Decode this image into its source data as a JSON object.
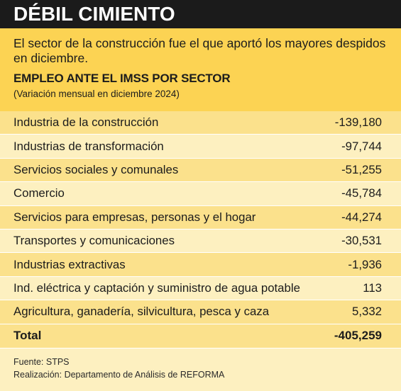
{
  "header": {
    "title": "DÉBIL CIMIENTO",
    "subtitle": "El sector de la construcción fue el que aportó los mayores despidos en diciembre."
  },
  "chart_data": {
    "type": "table",
    "title": "EMPLEO ANTE EL IMSS POR SECTOR",
    "note": "(Variación mensual en diciembre 2024)",
    "rows": [
      {
        "label": "Industria de la construcción",
        "value_text": "-139,180",
        "value": -139180
      },
      {
        "label": "Industrias de transformación",
        "value_text": "-97,744",
        "value": -97744
      },
      {
        "label": "Servicios sociales y comunales",
        "value_text": "-51,255",
        "value": -51255
      },
      {
        "label": "Comercio",
        "value_text": "-45,784",
        "value": -45784
      },
      {
        "label": "Servicios para empresas, personas y el hogar",
        "value_text": "-44,274",
        "value": -44274
      },
      {
        "label": "Transportes y comunicaciones",
        "value_text": "-30,531",
        "value": -30531
      },
      {
        "label": "Industrias extractivas",
        "value_text": "-1,936",
        "value": -1936
      },
      {
        "label": "Ind. eléctrica y captación y suministro de agua potable",
        "value_text": "113",
        "value": 113
      },
      {
        "label": "Agricultura, ganadería, silvicultura, pesca y caza",
        "value_text": "5,332",
        "value": 5332
      }
    ],
    "total": {
      "label": "Total",
      "value_text": "-405,259",
      "value": -405259
    }
  },
  "footer": {
    "source": "Fuente: STPS",
    "credit": "Realización: Departamento de Análisis de REFORMA"
  },
  "colors": {
    "title_bar": "#1b1b1b",
    "intro_band": "#fcd353",
    "row_dark": "#fbe18c",
    "row_light": "#fdf0c0"
  }
}
